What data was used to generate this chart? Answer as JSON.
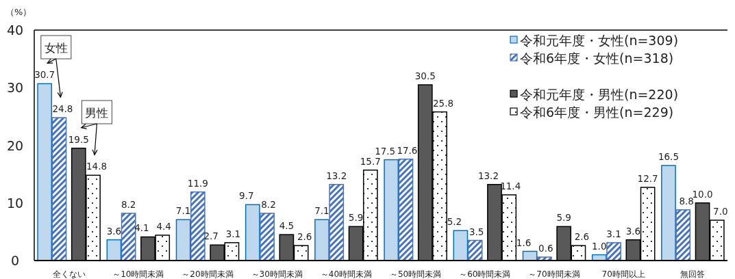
{
  "chart_data": {
    "type": "bar",
    "ylabel": "（%）",
    "categories": [
      "全くない",
      "～10時間未満",
      "～20時間未満",
      "～30時間未満",
      "～40時間未満",
      "～50時間未満",
      "～60時間未満",
      "～70時間未満",
      "70時間以上",
      "無回答"
    ],
    "series": [
      {
        "name": "令和元年度・女性(n=309)",
        "color": "#bdd7ee",
        "values": [
          30.7,
          3.6,
          7.1,
          9.7,
          7.1,
          17.5,
          5.2,
          1.6,
          1.0,
          16.5
        ],
        "value_labels": [
          "30.7",
          "3.6",
          "7.1",
          "9.7",
          "7.1",
          "17.5",
          "5.2",
          "1.6",
          "1.0",
          "16.5"
        ]
      },
      {
        "name": "令和6年度・女性(n=318)",
        "color": "#4472c4",
        "values": [
          24.8,
          8.2,
          11.9,
          8.2,
          13.2,
          17.6,
          3.5,
          0.6,
          3.1,
          8.8
        ],
        "value_labels": [
          "24.8",
          "8.2",
          "11.9",
          "8.2",
          "13.2",
          "17.6",
          "3.5",
          "0.6",
          "3.1",
          "8.8"
        ]
      },
      {
        "name": "令和元年度・男性(n=220)",
        "color": "#595959",
        "values": [
          19.5,
          4.1,
          2.7,
          4.5,
          5.9,
          30.5,
          13.2,
          5.9,
          3.6,
          10.0
        ],
        "value_labels": [
          "19.5",
          "4.1",
          "2.7",
          "4.5",
          "5.9",
          "30.5",
          "13.2",
          "5.9",
          "3.6",
          "10.0"
        ]
      },
      {
        "name": "令和6年度・男性(n=229)",
        "color": "#000000",
        "values": [
          14.8,
          4.4,
          3.1,
          2.6,
          15.7,
          25.8,
          11.4,
          2.6,
          12.7,
          7.0
        ],
        "value_labels": [
          "14.8",
          "4.4",
          "3.1",
          "2.6",
          "15.7",
          "25.8",
          "11.4",
          "2.6",
          "12.7",
          "7.0"
        ]
      }
    ],
    "ylim": [
      0,
      40
    ],
    "yticks": [
      0,
      10,
      20,
      30,
      40
    ],
    "legend": "top right",
    "annotations": [
      "女性",
      "男性"
    ]
  }
}
